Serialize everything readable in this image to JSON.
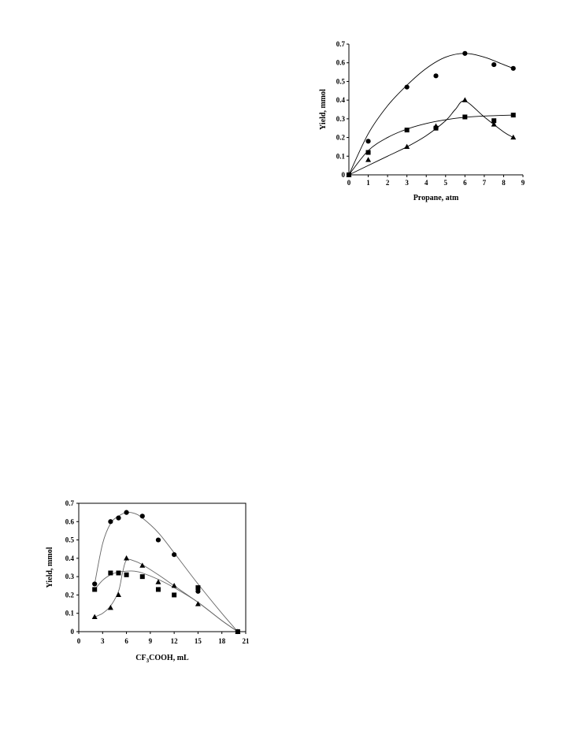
{
  "chart_data": [
    {
      "type": "scatter",
      "title": "",
      "xlabel": "Propane, atm",
      "ylabel": "Yield, mmol",
      "xlim": [
        0,
        9
      ],
      "ylim": [
        0,
        0.7
      ],
      "xticks": [
        "0",
        "1",
        "2",
        "3",
        "4",
        "5",
        "6",
        "7",
        "8",
        "9"
      ],
      "yticks": [
        "0",
        "0.1",
        "0.2",
        "0.3",
        "0.4",
        "0.5",
        "0.6",
        "0.7"
      ],
      "grid": false,
      "series": [
        {
          "marker": "circle",
          "x": [
            0,
            1,
            3,
            4.5,
            6,
            7.5,
            8.5
          ],
          "y": [
            0,
            0.18,
            0.47,
            0.53,
            0.65,
            0.59,
            0.57
          ]
        },
        {
          "marker": "square",
          "x": [
            0,
            1,
            3,
            4.5,
            6,
            7.5,
            8.5
          ],
          "y": [
            0,
            0.12,
            0.24,
            0.25,
            0.31,
            0.29,
            0.32
          ]
        },
        {
          "marker": "triangle",
          "x": [
            0,
            1,
            3,
            4.5,
            6,
            7.5,
            8.5
          ],
          "y": [
            0,
            0.08,
            0.15,
            0.26,
            0.4,
            0.27,
            0.2
          ]
        }
      ],
      "fits": [
        {
          "marker": "circle",
          "x": [
            0,
            1,
            2,
            3,
            4,
            5,
            6,
            7,
            8,
            8.5
          ],
          "y": [
            0,
            0.22,
            0.37,
            0.48,
            0.57,
            0.63,
            0.65,
            0.63,
            0.59,
            0.57
          ]
        },
        {
          "marker": "square",
          "x": [
            0,
            1,
            2,
            3,
            4,
            5,
            6,
            7,
            8.5
          ],
          "y": [
            0,
            0.13,
            0.2,
            0.245,
            0.275,
            0.295,
            0.308,
            0.315,
            0.32
          ]
        },
        {
          "marker": "triangle",
          "x": [
            0,
            1,
            2,
            3,
            4,
            5,
            5.5,
            6,
            7,
            8,
            8.5
          ],
          "y": [
            0,
            0.05,
            0.1,
            0.15,
            0.21,
            0.29,
            0.35,
            0.395,
            0.31,
            0.23,
            0.2
          ]
        }
      ]
    },
    {
      "type": "scatter",
      "title": "",
      "xlabel_main": "CF",
      "xlabel_sub": "3",
      "xlabel_rest": "COOH, mL",
      "ylabel": "Yield, mmol",
      "xlim": [
        0,
        21
      ],
      "ylim": [
        0,
        0.7
      ],
      "xticks": [
        "0",
        "3",
        "6",
        "9",
        "12",
        "15",
        "18",
        "21"
      ],
      "yticks": [
        "0",
        "0.1",
        "0.2",
        "0.3",
        "0.4",
        "0.5",
        "0.6",
        "0.7"
      ],
      "grid": false,
      "series": [
        {
          "marker": "circle",
          "x": [
            2,
            4,
            5,
            6,
            8,
            10,
            12,
            15,
            20
          ],
          "y": [
            0.26,
            0.6,
            0.62,
            0.65,
            0.63,
            0.5,
            0.42,
            0.22,
            0
          ]
        },
        {
          "marker": "square",
          "x": [
            2,
            4,
            5,
            6,
            8,
            10,
            12,
            15,
            20
          ],
          "y": [
            0.23,
            0.32,
            0.32,
            0.31,
            0.3,
            0.23,
            0.2,
            0.24,
            0
          ]
        },
        {
          "marker": "triangle",
          "x": [
            2,
            4,
            5,
            6,
            8,
            10,
            12,
            15,
            20
          ],
          "y": [
            0.08,
            0.13,
            0.2,
            0.4,
            0.36,
            0.27,
            0.25,
            0.15,
            0
          ]
        }
      ],
      "fits": [
        {
          "marker": "circle",
          "x": [
            2,
            3,
            4,
            5,
            6,
            7,
            8,
            10,
            12,
            15,
            18,
            20
          ],
          "y": [
            0.26,
            0.48,
            0.59,
            0.63,
            0.65,
            0.645,
            0.62,
            0.54,
            0.43,
            0.26,
            0.1,
            0
          ]
        },
        {
          "marker": "square",
          "x": [
            2,
            3,
            4,
            5,
            6,
            7,
            8,
            10,
            12,
            15,
            18,
            20
          ],
          "y": [
            0.23,
            0.28,
            0.31,
            0.325,
            0.33,
            0.33,
            0.32,
            0.285,
            0.24,
            0.16,
            0.06,
            0
          ]
        },
        {
          "marker": "triangle",
          "x": [
            2,
            3,
            4,
            5,
            5.5,
            6,
            7,
            8,
            10,
            12,
            15,
            18,
            20
          ],
          "y": [
            0.08,
            0.1,
            0.14,
            0.22,
            0.32,
            0.39,
            0.385,
            0.365,
            0.31,
            0.25,
            0.16,
            0.06,
            0
          ]
        }
      ]
    }
  ]
}
